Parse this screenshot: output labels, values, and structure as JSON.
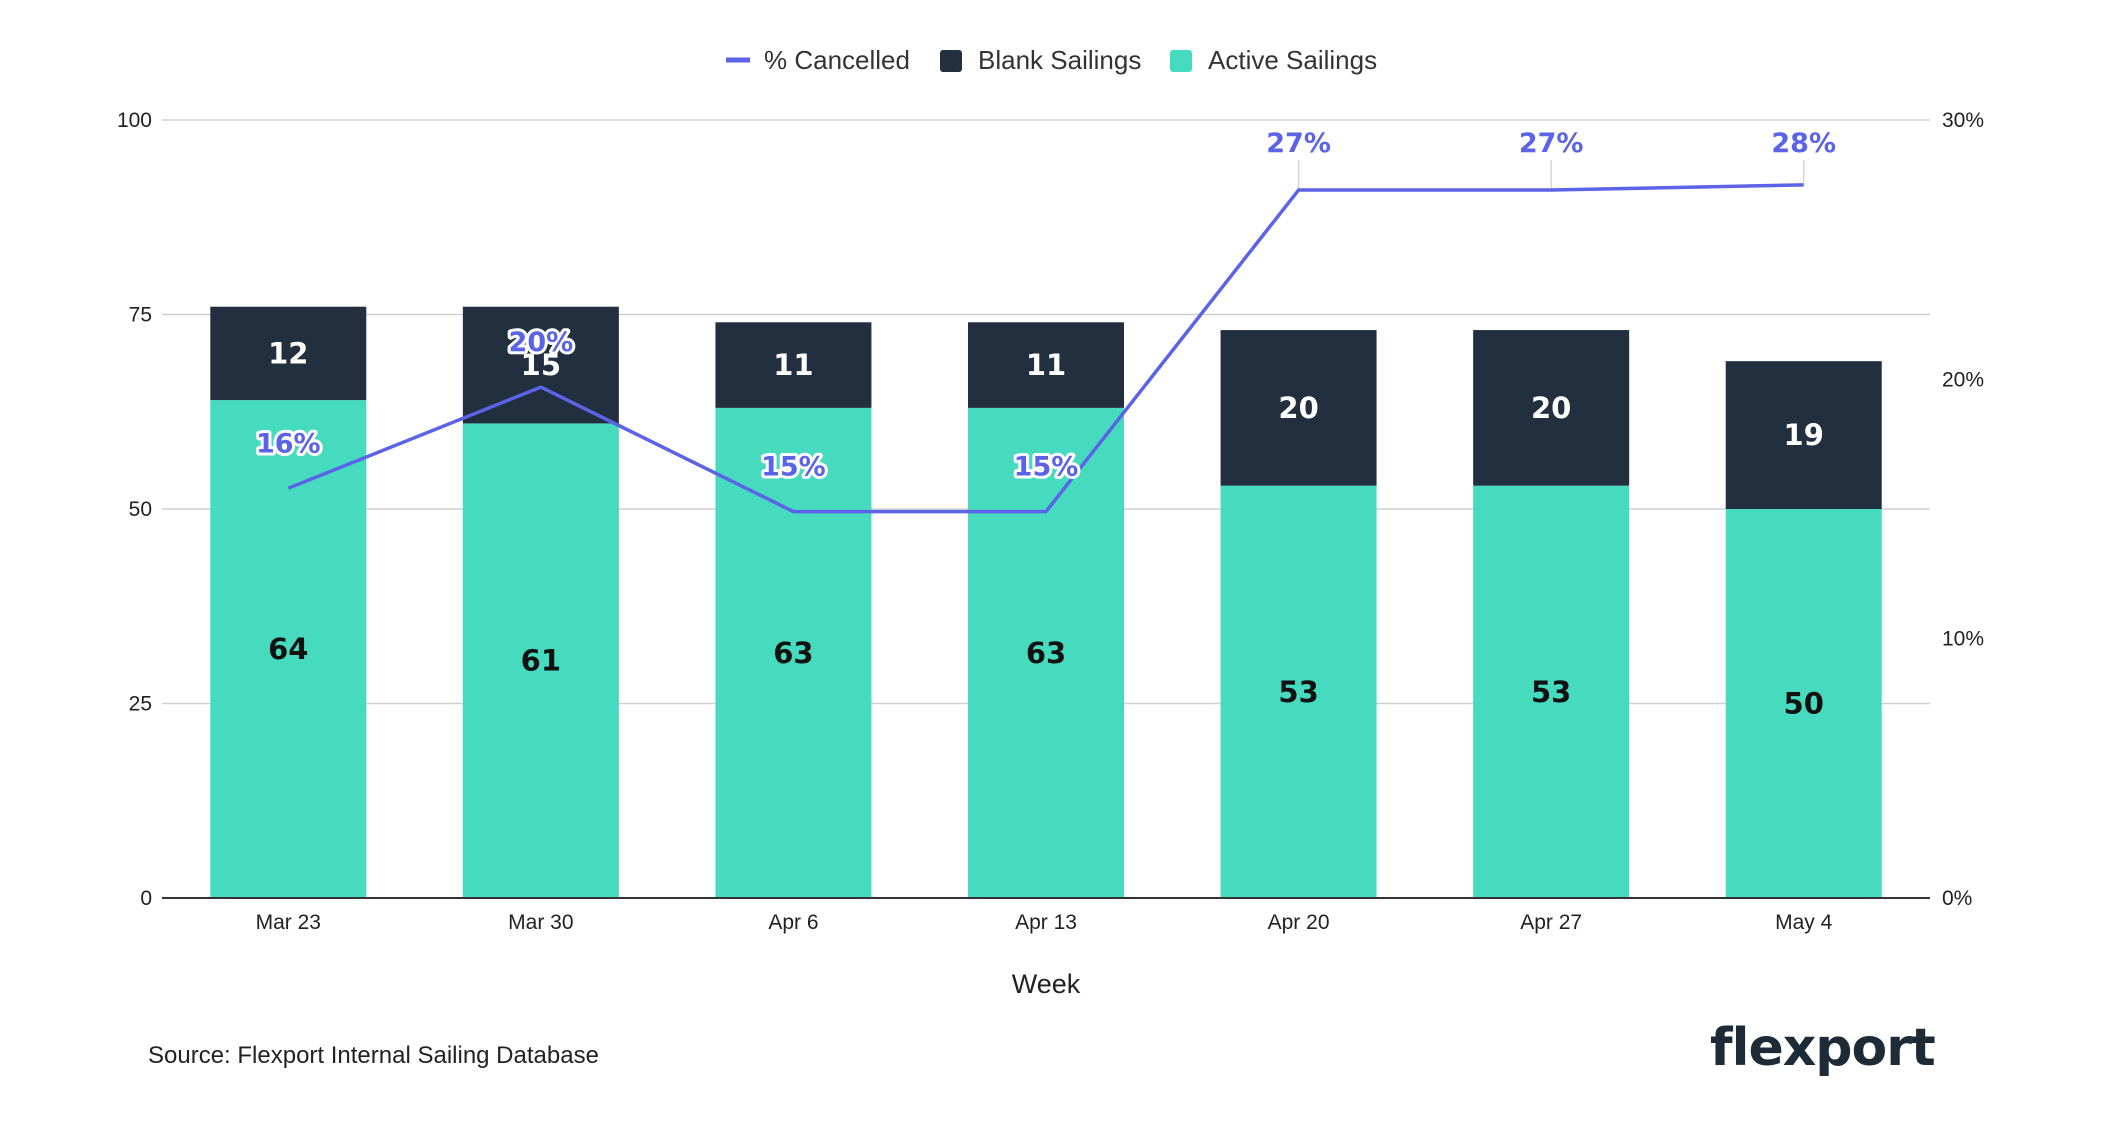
{
  "chart_data": {
    "type": "bar",
    "stacked": true,
    "categories": [
      "Mar 23",
      "Mar 30",
      "Apr 6",
      "Apr 13",
      "Apr 20",
      "Apr 27",
      "May 4"
    ],
    "series": [
      {
        "name": "Active Sailings",
        "color": "#46dbbf",
        "axis": "left",
        "values": [
          64,
          61,
          63,
          63,
          53,
          53,
          50
        ]
      },
      {
        "name": "Blank Sailings",
        "color": "#222f3e",
        "axis": "left",
        "values": [
          12,
          15,
          11,
          11,
          20,
          20,
          19
        ]
      }
    ],
    "line_series": {
      "name": "% Cancelled",
      "color": "#5b63e6",
      "axis": "right",
      "values": [
        16,
        20,
        15,
        15,
        27,
        27,
        28
      ],
      "plot_values": [
        15.8,
        19.7,
        14.9,
        14.9,
        27.3,
        27.3,
        27.5
      ],
      "labels": [
        "16%",
        "20%",
        "15%",
        "15%",
        "27%",
        "27%",
        "28%"
      ]
    },
    "legend": [
      "% Cancelled",
      "Blank Sailings",
      "Active Sailings"
    ],
    "legend_position": "top-center",
    "xlabel": "Week",
    "ylim": [
      0,
      100
    ],
    "yticks": [
      0,
      25,
      50,
      75,
      100
    ],
    "y2lim": [
      0,
      30
    ],
    "y2ticks": [
      "0%",
      "10%",
      "20%",
      "30%"
    ],
    "y2tick_values": [
      0,
      10,
      20,
      30
    ],
    "grid": true
  },
  "footer": {
    "source": "Source: Flexport Internal Sailing Database",
    "logo": "flexport"
  }
}
